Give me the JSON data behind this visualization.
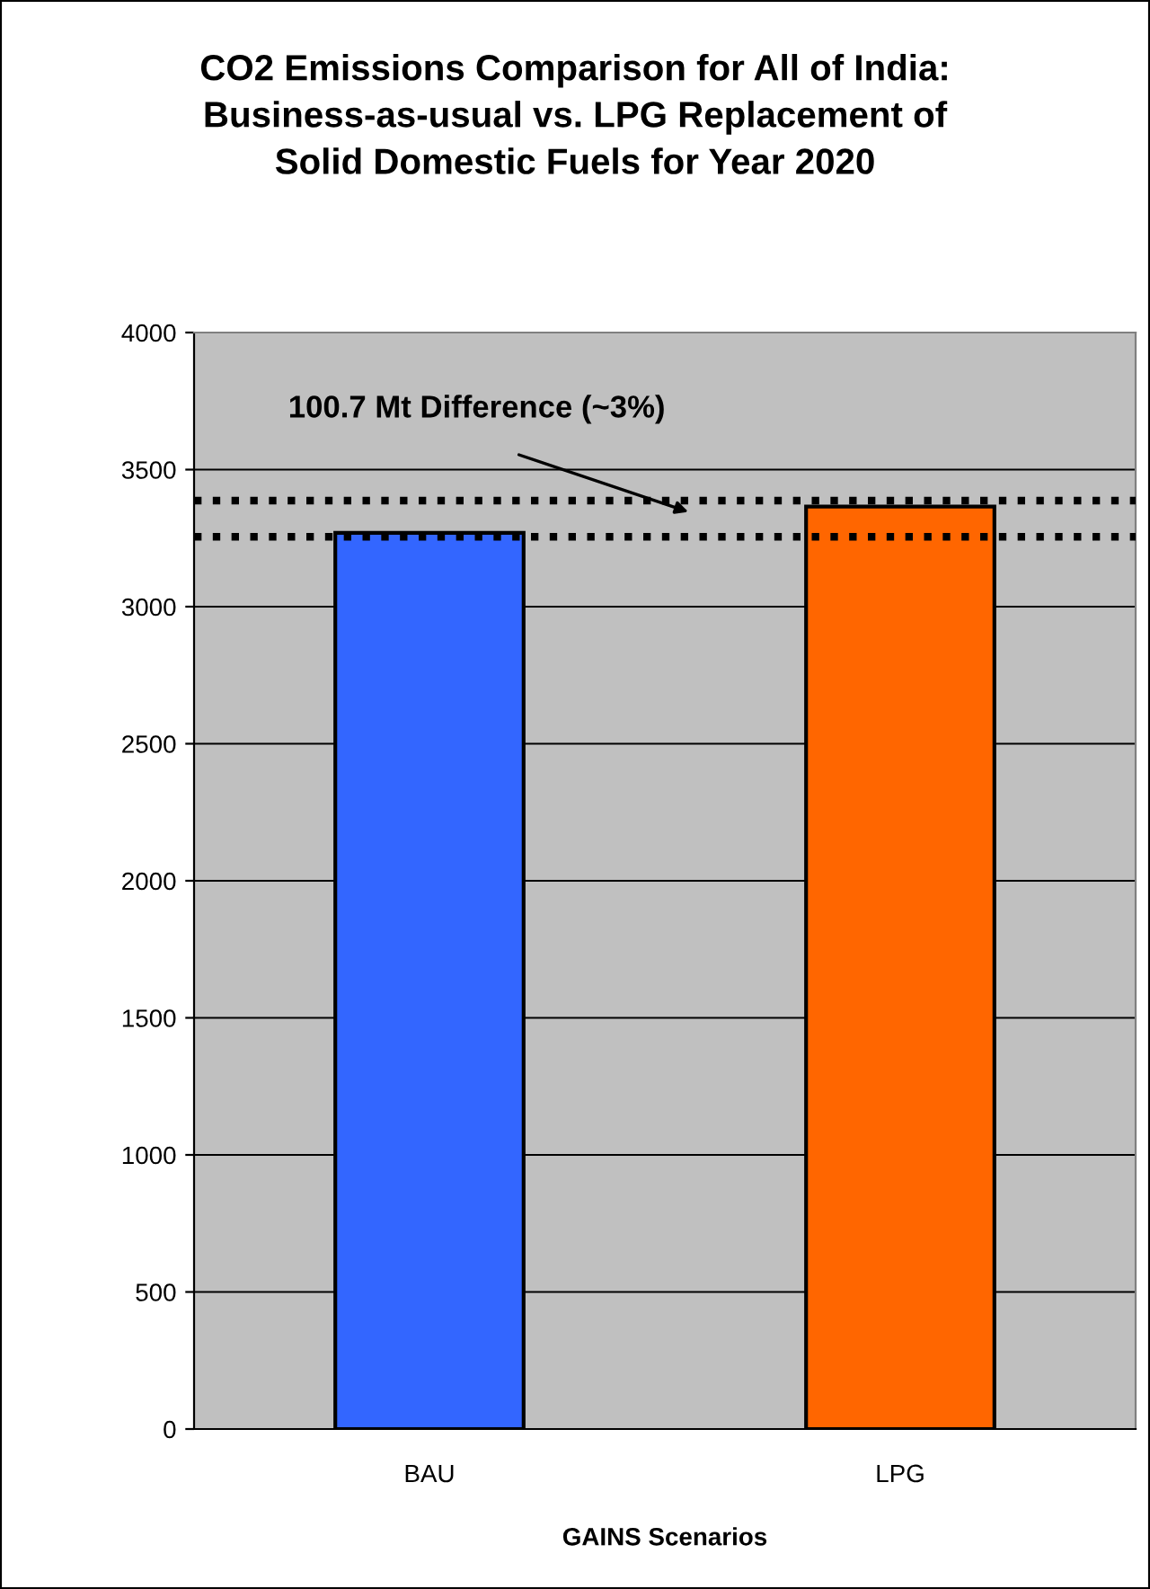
{
  "chart_data": {
    "type": "bar",
    "title": "CO2 Emissions Comparison for All of India:\nBusiness-as-usual vs. LPG Replacement of\nSolid Domestic Fuels for Year 2020",
    "xlabel": "GAINS Scenarios",
    "categories": [
      "BAU",
      "LPG"
    ],
    "values": [
      3269,
      3365
    ],
    "colors": [
      "#3366ff",
      "#ff6600"
    ],
    "ylim": [
      0,
      4000
    ],
    "yticks": [
      0,
      500,
      1000,
      1500,
      2000,
      2500,
      3000,
      3500,
      4000
    ],
    "grid": "y",
    "ref_lines": [
      {
        "axis": "y",
        "value": 3387,
        "color": "#000000",
        "line_style": "dotted"
      },
      {
        "axis": "y",
        "value": 3255,
        "color": "#000000",
        "line_style": "dotted"
      }
    ],
    "annotations": [
      "100.7 Mt Difference (~3%)"
    ]
  }
}
